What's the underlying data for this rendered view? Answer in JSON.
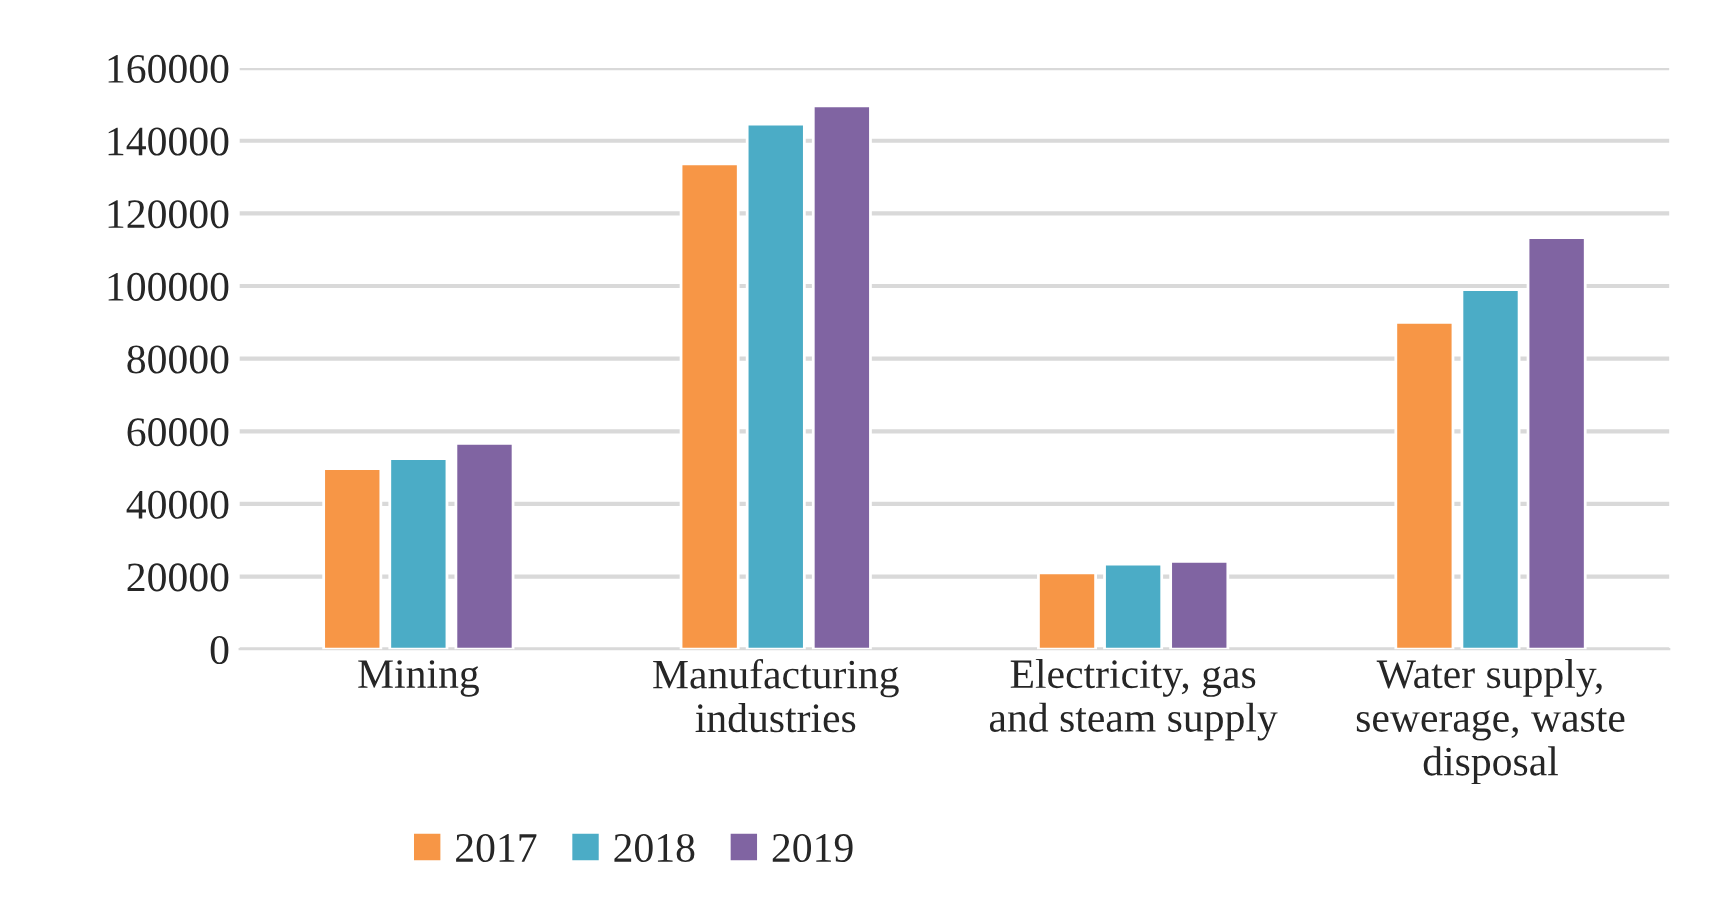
{
  "chart_data": {
    "type": "bar",
    "categories": [
      "Mining",
      "Manufacturing\nindustries",
      "Electricity, gas\nand steam supply",
      "Water supply,\nsewerage, waste\ndisposal"
    ],
    "series": [
      {
        "name": "2017",
        "color": "#f79646",
        "values": [
          49700,
          133600,
          21000,
          90000
        ]
      },
      {
        "name": "2018",
        "color": "#4bacc6",
        "values": [
          52500,
          144600,
          23400,
          99000
        ]
      },
      {
        "name": "2019",
        "color": "#8064a2",
        "values": [
          56700,
          149600,
          24200,
          113300
        ]
      }
    ],
    "ylim": [
      0,
      160000
    ],
    "yticks": [
      0,
      20000,
      40000,
      60000,
      80000,
      100000,
      120000,
      140000,
      160000
    ],
    "grid": "y",
    "legend": "bottom"
  }
}
